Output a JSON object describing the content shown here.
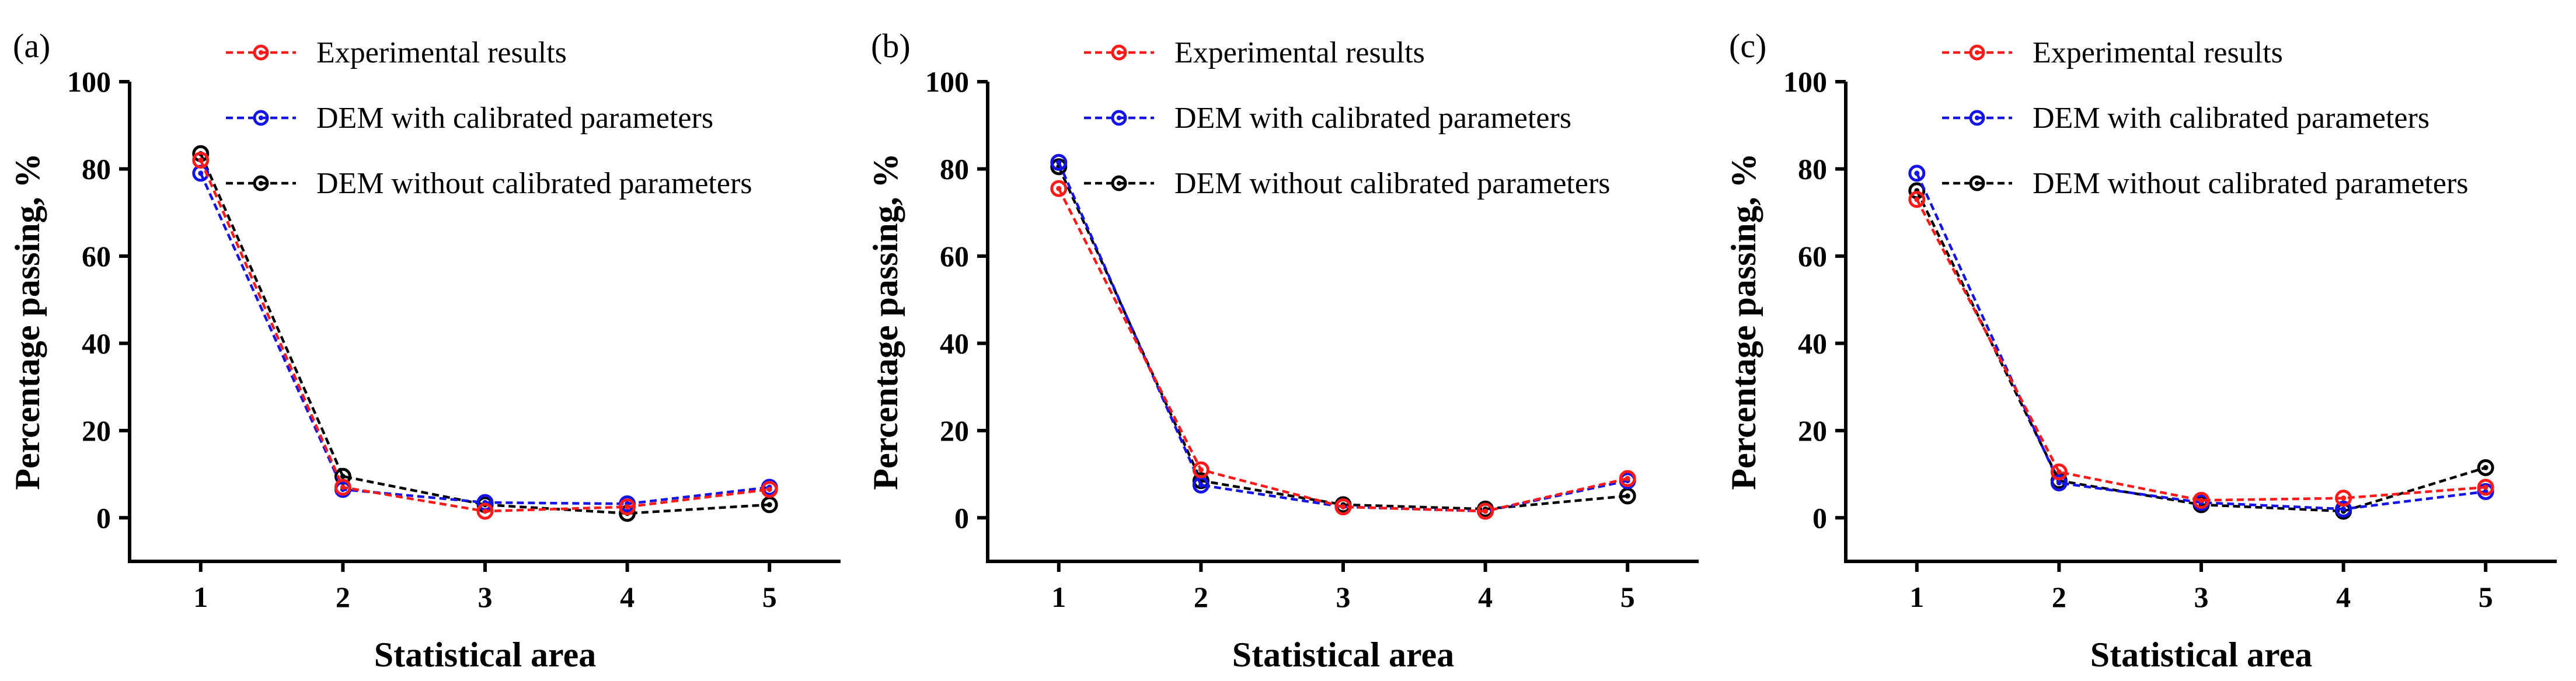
{
  "colors": {
    "axis": "#000000",
    "experimental": "#ff1a1a",
    "calibrated": "#1414e6",
    "uncalibrated": "#000000"
  },
  "chart_data": [
    {
      "type": "line",
      "panel_label": "(a)",
      "xlabel": "Statistical area",
      "ylabel": "Percentage passing, %",
      "categories": [
        "1",
        "2",
        "3",
        "4",
        "5"
      ],
      "x": [
        1,
        2,
        3,
        4,
        5
      ],
      "xlim": [
        0.5,
        5.5
      ],
      "ylim": [
        -10,
        100
      ],
      "yticks": [
        "0",
        "20",
        "40",
        "60",
        "80",
        "100"
      ],
      "ytick_values": [
        0,
        20,
        40,
        60,
        80,
        100
      ],
      "legend_position": "top-right",
      "series": [
        {
          "name": "Experimental results",
          "color": "#ff1a1a",
          "values": [
            82,
            7,
            1.5,
            2.5,
            6.5
          ]
        },
        {
          "name": "DEM with calibrated parameters",
          "color": "#1414e6",
          "values": [
            79,
            6.5,
            3.5,
            3.2,
            7
          ]
        },
        {
          "name": "DEM without calibrated parameters",
          "color": "#000000",
          "values": [
            83.5,
            9.5,
            3,
            1,
            3
          ]
        }
      ]
    },
    {
      "type": "line",
      "panel_label": "(b)",
      "xlabel": "Statistical area",
      "ylabel": "Percentage passing, %",
      "categories": [
        "1",
        "2",
        "3",
        "4",
        "5"
      ],
      "x": [
        1,
        2,
        3,
        4,
        5
      ],
      "xlim": [
        0.5,
        5.5
      ],
      "ylim": [
        -10,
        100
      ],
      "yticks": [
        "0",
        "20",
        "40",
        "60",
        "80",
        "100"
      ],
      "ytick_values": [
        0,
        20,
        40,
        60,
        80,
        100
      ],
      "legend_position": "top-right",
      "series": [
        {
          "name": "Experimental results",
          "color": "#ff1a1a",
          "values": [
            75.5,
            11,
            2.5,
            1.5,
            9
          ]
        },
        {
          "name": "DEM with calibrated parameters",
          "color": "#1414e6",
          "values": [
            81.5,
            7.5,
            2.5,
            1.5,
            8.5
          ]
        },
        {
          "name": "DEM without calibrated parameters",
          "color": "#000000",
          "values": [
            80.5,
            8.5,
            3,
            2,
            5
          ]
        }
      ]
    },
    {
      "type": "line",
      "panel_label": "(c)",
      "xlabel": "Statistical area",
      "ylabel": "Percentage passing, %",
      "categories": [
        "1",
        "2",
        "3",
        "4",
        "5"
      ],
      "x": [
        1,
        2,
        3,
        4,
        5
      ],
      "xlim": [
        0.5,
        5.5
      ],
      "ylim": [
        -10,
        100
      ],
      "yticks": [
        "0",
        "20",
        "40",
        "60",
        "80",
        "100"
      ],
      "ytick_values": [
        0,
        20,
        40,
        60,
        80,
        100
      ],
      "legend_position": "top-right",
      "series": [
        {
          "name": "Experimental results",
          "color": "#ff1a1a",
          "values": [
            73,
            10.5,
            4,
            4.5,
            7
          ]
        },
        {
          "name": "DEM with calibrated parameters",
          "color": "#1414e6",
          "values": [
            79,
            8,
            3.5,
            2,
            6
          ]
        },
        {
          "name": "DEM without calibrated parameters",
          "color": "#000000",
          "values": [
            75,
            8.5,
            3,
            1.5,
            11.5
          ]
        }
      ]
    }
  ]
}
